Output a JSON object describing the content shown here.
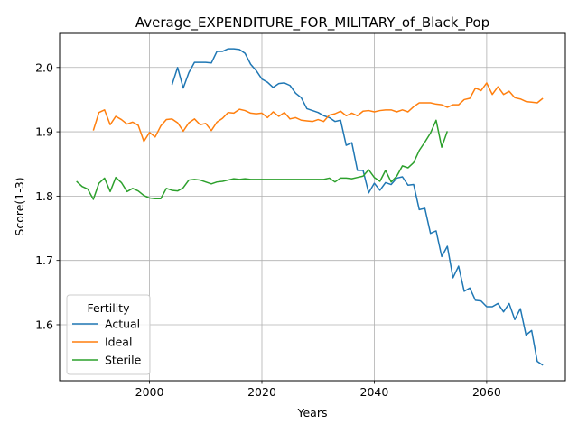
{
  "chart_data": {
    "type": "line",
    "title": "Average_EXPENDITURE_FOR_MILITARY_of_Black_Pop",
    "xlabel": "Years",
    "ylabel": "Score(1-3)",
    "xlim": [
      1984,
      2074
    ],
    "ylim": [
      1.513,
      2.053
    ],
    "xticks": [
      2000,
      2020,
      2040,
      2060
    ],
    "yticks": [
      1.6,
      1.7,
      1.8,
      1.9,
      2.0
    ],
    "grid": true,
    "legend": {
      "title": "Fertility",
      "position": "lower-left"
    },
    "series": [
      {
        "name": "Actual",
        "color": "#1f77b4",
        "x": [
          2004,
          2005,
          2006,
          2007,
          2008,
          2009,
          2010,
          2011,
          2012,
          2013,
          2014,
          2015,
          2016,
          2017,
          2018,
          2019,
          2020,
          2021,
          2022,
          2023,
          2024,
          2025,
          2026,
          2027,
          2028,
          2029,
          2030,
          2031,
          2032,
          2033,
          2034,
          2035,
          2036,
          2037,
          2038,
          2039,
          2040,
          2041,
          2042,
          2043,
          2044,
          2045,
          2046,
          2047,
          2048,
          2049,
          2050,
          2051,
          2052,
          2053,
          2054,
          2055,
          2056,
          2057,
          2058,
          2059,
          2060,
          2061,
          2062,
          2063,
          2064,
          2065,
          2066,
          2067,
          2068,
          2069,
          2070
        ],
        "y": [
          1.973,
          2.0,
          1.968,
          1.992,
          2.008,
          2.008,
          2.008,
          2.007,
          2.025,
          2.025,
          2.029,
          2.029,
          2.028,
          2.022,
          2.005,
          1.995,
          1.982,
          1.977,
          1.969,
          1.975,
          1.976,
          1.972,
          1.96,
          1.953,
          1.936,
          1.933,
          1.93,
          1.925,
          1.922,
          1.916,
          1.918,
          1.879,
          1.883,
          1.84,
          1.84,
          1.805,
          1.82,
          1.809,
          1.821,
          1.818,
          1.828,
          1.83,
          1.817,
          1.818,
          1.779,
          1.781,
          1.742,
          1.746,
          1.706,
          1.722,
          1.673,
          1.691,
          1.652,
          1.657,
          1.638,
          1.637,
          1.628,
          1.628,
          1.633,
          1.62,
          1.633,
          1.608,
          1.625,
          1.584,
          1.591,
          1.543,
          1.537
        ]
      },
      {
        "name": "Ideal",
        "color": "#ff7f0e",
        "x": [
          1990,
          1991,
          1992,
          1993,
          1994,
          1995,
          1996,
          1997,
          1998,
          1999,
          2000,
          2001,
          2002,
          2003,
          2004,
          2005,
          2006,
          2007,
          2008,
          2009,
          2010,
          2011,
          2012,
          2013,
          2014,
          2015,
          2016,
          2017,
          2018,
          2019,
          2020,
          2021,
          2022,
          2023,
          2024,
          2025,
          2026,
          2027,
          2028,
          2029,
          2030,
          2031,
          2032,
          2033,
          2034,
          2035,
          2036,
          2037,
          2038,
          2039,
          2040,
          2041,
          2042,
          2043,
          2044,
          2045,
          2046,
          2047,
          2048,
          2049,
          2050,
          2051,
          2052,
          2053,
          2054,
          2055,
          2056,
          2057,
          2058,
          2059,
          2060,
          2061,
          2062,
          2063,
          2064,
          2065,
          2066,
          2067,
          2068,
          2069,
          2070
        ],
        "y": [
          1.902,
          1.93,
          1.934,
          1.911,
          1.924,
          1.919,
          1.912,
          1.915,
          1.91,
          1.885,
          1.899,
          1.892,
          1.909,
          1.919,
          1.92,
          1.914,
          1.901,
          1.914,
          1.92,
          1.911,
          1.913,
          1.902,
          1.915,
          1.921,
          1.93,
          1.929,
          1.935,
          1.933,
          1.929,
          1.928,
          1.929,
          1.922,
          1.931,
          1.924,
          1.93,
          1.92,
          1.922,
          1.918,
          1.917,
          1.916,
          1.919,
          1.916,
          1.926,
          1.928,
          1.932,
          1.925,
          1.929,
          1.925,
          1.932,
          1.933,
          1.931,
          1.933,
          1.934,
          1.934,
          1.931,
          1.934,
          1.931,
          1.939,
          1.945,
          1.945,
          1.945,
          1.943,
          1.942,
          1.938,
          1.942,
          1.942,
          1.95,
          1.952,
          1.968,
          1.964,
          1.976,
          1.958,
          1.97,
          1.958,
          1.963,
          1.953,
          1.951,
          1.947,
          1.946,
          1.945,
          1.952
        ]
      },
      {
        "name": "Sterile",
        "color": "#2ca02c",
        "x": [
          1987,
          1988,
          1989,
          1990,
          1991,
          1992,
          1993,
          1994,
          1995,
          1996,
          1997,
          1998,
          1999,
          2000,
          2001,
          2002,
          2003,
          2004,
          2005,
          2006,
          2007,
          2008,
          2009,
          2010,
          2011,
          2012,
          2013,
          2014,
          2015,
          2016,
          2017,
          2018,
          2019,
          2020,
          2021,
          2022,
          2023,
          2024,
          2025,
          2026,
          2027,
          2028,
          2029,
          2030,
          2031,
          2032,
          2033,
          2034,
          2035,
          2036,
          2037,
          2038,
          2039,
          2040,
          2041,
          2042,
          2043,
          2044,
          2045,
          2046,
          2047,
          2048,
          2049,
          2050,
          2051,
          2052,
          2053
        ],
        "y": [
          1.823,
          1.815,
          1.811,
          1.795,
          1.82,
          1.828,
          1.807,
          1.829,
          1.821,
          1.807,
          1.812,
          1.808,
          1.801,
          1.797,
          1.796,
          1.796,
          1.812,
          1.809,
          1.808,
          1.813,
          1.825,
          1.826,
          1.825,
          1.822,
          1.819,
          1.822,
          1.823,
          1.825,
          1.827,
          1.826,
          1.827,
          1.826,
          1.826,
          1.826,
          1.826,
          1.826,
          1.826,
          1.826,
          1.826,
          1.826,
          1.826,
          1.826,
          1.826,
          1.826,
          1.826,
          1.828,
          1.822,
          1.828,
          1.828,
          1.827,
          1.829,
          1.831,
          1.841,
          1.829,
          1.823,
          1.84,
          1.822,
          1.831,
          1.847,
          1.844,
          1.852,
          1.871,
          1.884,
          1.898,
          1.918,
          1.876,
          1.901
        ]
      }
    ]
  }
}
